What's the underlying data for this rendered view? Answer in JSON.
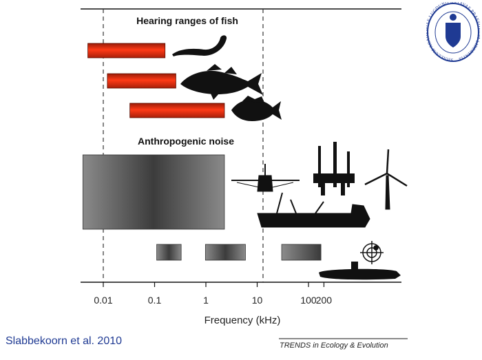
{
  "citation": "Slabbekoorn et al. 2010",
  "journal_credit": "TRENDS in Ecology & Evolution",
  "seal": {
    "text": "SIGILLUM ACADEMIAE LUGDUNO BATAVAE PRAESIDIUM LIBERTATIS",
    "color": "#1f3a93"
  },
  "icons": [
    "eel-silhouette-icon",
    "cod-silhouette-icon",
    "perch-silhouette-icon",
    "oil-platform-icon",
    "drilling-rig-icon",
    "wind-turbine-icon",
    "cargo-ship-icon",
    "sonar-target-icon",
    "submarine-icon"
  ],
  "chart_data": {
    "type": "bar",
    "orientation": "horizontal-ranges",
    "x_axis": {
      "label": "Frequency (kHz)",
      "scale": "log",
      "range": [
        0.003,
        500
      ],
      "ticks": [
        0.01,
        0.1,
        1,
        10,
        100,
        200
      ],
      "tick_labels": [
        "0.01",
        "0.1",
        "1",
        "10",
        "100",
        "200"
      ]
    },
    "reference_lines_x": [
      0.01,
      13
    ],
    "groups": [
      {
        "title": "Hearing ranges of fish",
        "color": "#e32e12",
        "ranges": [
          {
            "icon": "eel-silhouette-icon",
            "x": [
              0.005,
              0.16
            ]
          },
          {
            "icon": "cod-silhouette-icon",
            "x": [
              0.012,
              0.26
            ]
          },
          {
            "icon": "perch-silhouette-icon",
            "x": [
              0.033,
              2.3
            ]
          }
        ]
      },
      {
        "title": "Anthropogenic noise",
        "color": "#555555",
        "ranges": [
          {
            "x": [
              0.004,
              2.3
            ],
            "tall": true
          },
          {
            "x": [
              0.11,
              0.33
            ]
          },
          {
            "x": [
              0.98,
              5.9
            ]
          },
          {
            "x": [
              30,
              175
            ]
          }
        ]
      }
    ]
  }
}
